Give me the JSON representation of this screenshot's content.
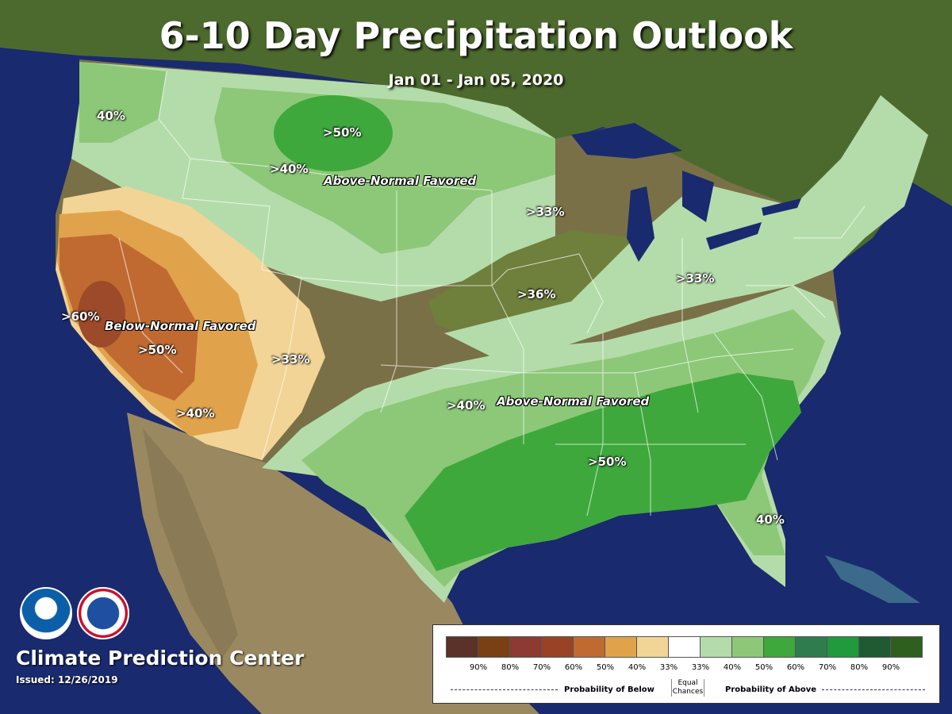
{
  "title": "6-10 Day Precipitation Outlook",
  "date_range": "Jan 01 - Jan 05, 2020",
  "colors": {
    "ocean": "#1a2a6e",
    "land": "#7a7048",
    "below_33": "#f2d496",
    "below_40": "#e0a34c",
    "below_50": "#c06a32",
    "below_60": "#9c4a2a",
    "above_33": "#b4dcaa",
    "above_40": "#8cc878",
    "above_50": "#3ea83c",
    "above_36_region": "#6f7f3c"
  },
  "region_labels": [
    {
      "text": "40%"
    },
    {
      "text": ">50%"
    },
    {
      "text": ">40%"
    },
    {
      "text": ">33%"
    },
    {
      "text": ">36%"
    },
    {
      "text": ">33%"
    },
    {
      "text": ">60%"
    },
    {
      "text": ">50%"
    },
    {
      "text": ">33%"
    },
    {
      "text": ">40%"
    },
    {
      "text": ">40%"
    },
    {
      "text": ">50%"
    },
    {
      "text": "40%"
    }
  ],
  "favored_labels": {
    "north": "Above-Normal Favored",
    "west": "Below-Normal Favored",
    "south": "Above-Normal Favored"
  },
  "organization": "Climate Prediction Center",
  "issued": "Issued: 12/26/2019",
  "logos": [
    {
      "icon": "noaa-logo"
    },
    {
      "icon": "nws-logo"
    }
  ],
  "legend": {
    "swatches": [
      "#5a3228",
      "#7a3f12",
      "#8c3a32",
      "#9a4226",
      "#c06a32",
      "#e0a34c",
      "#f2d496",
      "#ffffff",
      "#b4dcaa",
      "#8cc878",
      "#3ea83c",
      "#2f7d4c",
      "#1f9a3c",
      "#1f5a32",
      "#2f5f1f"
    ],
    "ticks": [
      "90%",
      "80%",
      "70%",
      "60%",
      "50%",
      "40%",
      "33%",
      "33%",
      "40%",
      "50%",
      "60%",
      "70%",
      "80%",
      "90%"
    ],
    "below_caption": "Probability of Below",
    "above_caption": "Probability of Above",
    "equal_line1": "Equal",
    "equal_line2": "Chances"
  }
}
